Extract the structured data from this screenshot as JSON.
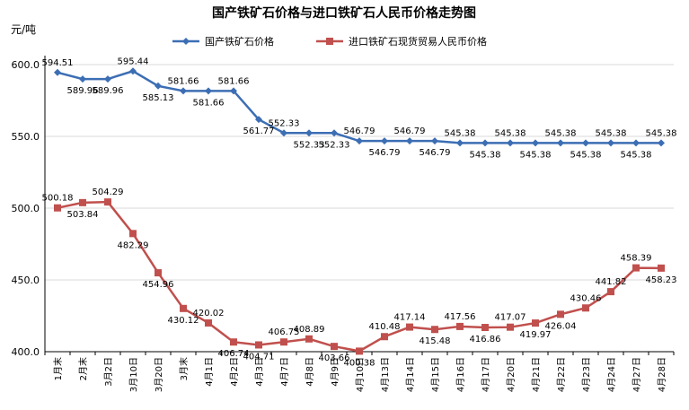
{
  "chart_data": {
    "type": "line",
    "title": "国产铁矿石价格与进口铁矿石人民币价格走势图",
    "unit_label": "元/吨",
    "xlabel": "",
    "ylabel": "",
    "ylim": [
      400,
      600
    ],
    "yticks": [
      "400.0",
      "450.0",
      "500.0",
      "550.0",
      "600.0"
    ],
    "yticks_values": [
      400,
      450,
      500,
      550,
      600
    ],
    "grid": true,
    "legend_position": "top",
    "categories": [
      "1月末",
      "2月末",
      "3月2日",
      "3月10日",
      "3月20日",
      "3月末",
      "4月1日",
      "4月2日",
      "4月3日",
      "4月7日",
      "4月8日",
      "4月9日",
      "4月10日",
      "4月13日",
      "4月14日",
      "4月15日",
      "4月16日",
      "4月17日",
      "4月20日",
      "4月21日",
      "4月22日",
      "4月23日",
      "4月24日",
      "4月27日",
      "4月28日"
    ],
    "series": [
      {
        "name": "国产铁矿石价格",
        "color": "#3C6EB4",
        "marker": "diamond",
        "values": [
          594.51,
          589.96,
          589.96,
          595.44,
          585.13,
          581.66,
          581.66,
          581.66,
          561.77,
          552.33,
          552.33,
          552.33,
          546.79,
          546.79,
          546.79,
          546.79,
          545.38,
          545.38,
          545.38,
          545.38,
          545.38,
          545.38,
          545.38,
          545.38,
          545.38
        ],
        "labels": [
          "594.51",
          "589.96",
          "589.96",
          "595.44",
          "585.13",
          "581.66",
          "581.66",
          "581.66",
          "561.77",
          "552.33",
          "552.33",
          "552.33",
          "546.79",
          "546.79",
          "546.79",
          "546.79",
          "545.38",
          "545.38",
          "545.38",
          "545.38",
          "545.38",
          "545.38",
          "545.38",
          "545.38",
          "545.38"
        ]
      },
      {
        "name": "进口铁矿石现货贸易人民币价格",
        "color": "#C0504D",
        "marker": "square",
        "values": [
          500.18,
          503.84,
          504.29,
          482.29,
          454.96,
          430.12,
          420.02,
          406.74,
          404.71,
          406.75,
          408.89,
          403.66,
          400.38,
          410.48,
          417.14,
          415.48,
          417.56,
          416.86,
          417.07,
          419.97,
          426.04,
          430.46,
          441.82,
          458.39,
          458.23
        ],
        "labels": [
          "500.18",
          "503.84",
          "504.29",
          "482.29",
          "454.96",
          "430.12",
          "420.02",
          "406.74",
          "404.71",
          "406.75",
          "408.89",
          "403.66",
          "400.38",
          "410.48",
          "417.14",
          "415.48",
          "417.56",
          "416.86",
          "417.07",
          "419.97",
          "426.04",
          "430.46",
          "441.82",
          "458.39",
          "458.23"
        ]
      }
    ]
  }
}
